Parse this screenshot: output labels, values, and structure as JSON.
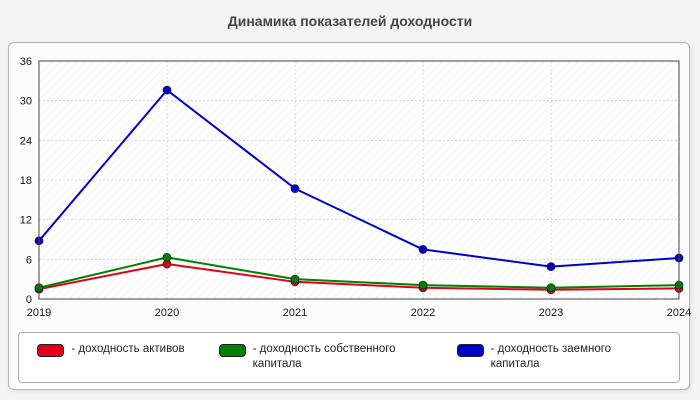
{
  "title": "Динамика показателей доходности",
  "chart_data": {
    "type": "line",
    "categories": [
      "2019",
      "2020",
      "2021",
      "2022",
      "2023",
      "2024"
    ],
    "series": [
      {
        "name": "доходность активов",
        "color": "#e3001b",
        "values": [
          1.5,
          5.3,
          2.6,
          1.7,
          1.4,
          1.6
        ]
      },
      {
        "name": "доходность собственного капитала",
        "color": "#008000",
        "values": [
          1.7,
          6.3,
          3.0,
          2.1,
          1.7,
          2.1
        ]
      },
      {
        "name": "доходность заемного капитала",
        "color": "#0000cd",
        "values": [
          8.8,
          31.6,
          16.7,
          7.5,
          4.9,
          6.2
        ]
      }
    ],
    "ylim": [
      0,
      36
    ],
    "yticks": [
      0,
      6,
      12,
      18,
      24,
      30,
      36
    ],
    "grid": true,
    "legend_position": "bottom"
  },
  "legend": {
    "items": [
      {
        "label": "- доходность активов",
        "color": "#e3001b"
      },
      {
        "label": "- доходность собственного капитала",
        "color": "#008000"
      },
      {
        "label": "- доходность заемного капитала",
        "color": "#0000cd"
      }
    ]
  }
}
